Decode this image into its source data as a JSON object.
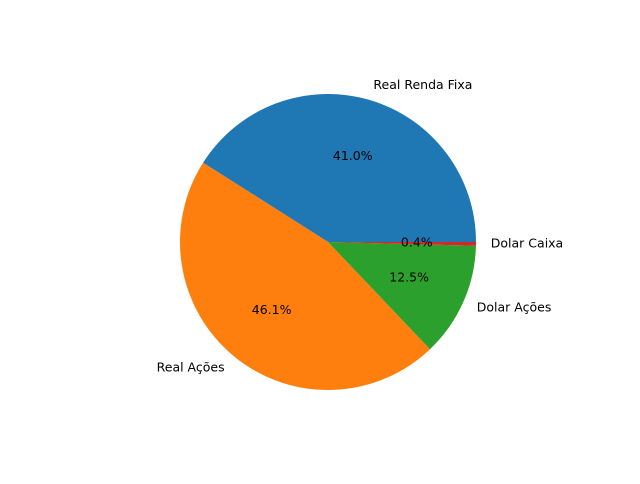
{
  "chart_data": {
    "type": "pie",
    "title": "",
    "start_angle_deg": 0,
    "direction": "counterclockwise",
    "slices": [
      {
        "label": "Real Renda Fixa",
        "value": 41.0,
        "pct_label": "41.0%",
        "color": "#1f77b4"
      },
      {
        "label": "Real Ações",
        "value": 46.1,
        "pct_label": "46.1%",
        "color": "#ff7f0e"
      },
      {
        "label": "Dolar Ações",
        "value": 12.5,
        "pct_label": "12.5%",
        "color": "#2ca02c"
      },
      {
        "label": "Dolar Caixa",
        "value": 0.4,
        "pct_label": "0.4%",
        "color": "#d62728"
      }
    ]
  }
}
